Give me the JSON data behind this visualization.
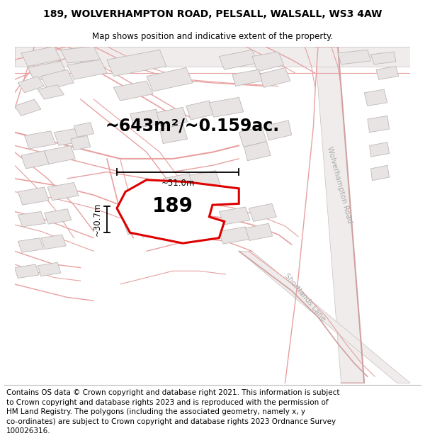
{
  "title": "189, WOLVERHAMPTON ROAD, PELSALL, WALSALL, WS3 4AW",
  "subtitle": "Map shows position and indicative extent of the property.",
  "area_text": "~643m²/~0.159ac.",
  "width_text": "~51.0m",
  "height_text": "~30.7m",
  "property_label": "189",
  "footer_line1": "Contains OS data © Crown copyright and database right 2021. This information is subject",
  "footer_line2": "to Crown copyright and database rights 2023 and is reproduced with the permission of",
  "footer_line3": "HM Land Registry. The polygons (including the associated geometry, namely x, y",
  "footer_line4": "co-ordinates) are subject to Crown copyright and database rights 2023 Ordnance Survey",
  "footer_line5": "100026316.",
  "map_bg": "#ffffff",
  "road_fill": "#f5f0f0",
  "road_line_color": "#e8a0a0",
  "road_outline_color": "#c8c0c0",
  "building_fill": "#e8e4e4",
  "building_edge": "#c0b8b8",
  "property_color": "#dd0000",
  "title_fontsize": 10,
  "subtitle_fontsize": 8.5,
  "area_fontsize": 17,
  "label_fontsize": 20,
  "measure_fontsize": 8.5,
  "footer_fontsize": 7.5,
  "road_label_color": "#aaaaaa",
  "road_label_size": 7.5
}
